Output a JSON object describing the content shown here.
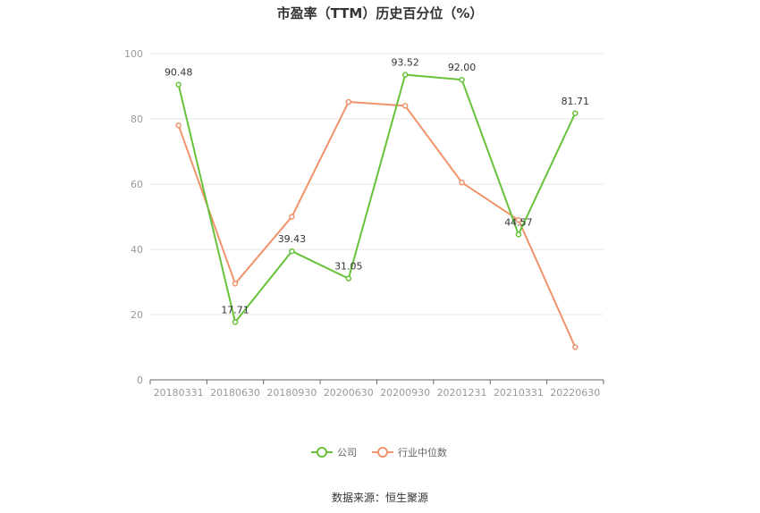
{
  "chart_data": {
    "type": "line",
    "title": "市盈率（TTM）历史百分位（%）",
    "categories": [
      "20180331",
      "20180630",
      "20180930",
      "20200630",
      "20200930",
      "20201231",
      "20210331",
      "20220630"
    ],
    "ylim": [
      0,
      100
    ],
    "yticks": [
      "0",
      "20",
      "40",
      "60",
      "80",
      "100"
    ],
    "grid": true,
    "legend_position": "bottom",
    "series": [
      {
        "name": "公司",
        "color": "#67c23a",
        "values": [
          90.48,
          17.71,
          39.43,
          31.05,
          93.52,
          92.0,
          44.57,
          81.71
        ],
        "labels": [
          "90.48",
          "17.71",
          "39.43",
          "31.05",
          "93.52",
          "92.00",
          "44.57",
          "81.71"
        ]
      },
      {
        "name": "行业中位数",
        "color": "#f0936a",
        "values": [
          78.0,
          29.5,
          50.0,
          85.2,
          84.0,
          60.5,
          49.0,
          10.0
        ]
      }
    ],
    "source": "数据来源：恒生聚源"
  }
}
